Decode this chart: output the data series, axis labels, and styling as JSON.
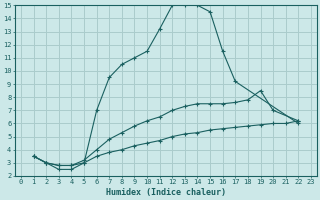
{
  "xlabel": "Humidex (Indice chaleur)",
  "background_color": "#cce8e8",
  "grid_color": "#aacccc",
  "line_color": "#1a6060",
  "xlim": [
    -0.5,
    23.5
  ],
  "ylim": [
    2,
    15
  ],
  "xticks": [
    0,
    1,
    2,
    3,
    4,
    5,
    6,
    7,
    8,
    9,
    10,
    11,
    12,
    13,
    14,
    15,
    16,
    17,
    18,
    19,
    20,
    21,
    22,
    23
  ],
  "yticks": [
    2,
    3,
    4,
    5,
    6,
    7,
    8,
    9,
    10,
    11,
    12,
    13,
    14,
    15
  ],
  "line1_x": [
    1,
    2,
    3,
    4,
    5,
    6,
    7,
    8,
    9,
    10,
    11,
    12,
    13,
    14,
    15,
    16,
    17,
    22
  ],
  "line1_y": [
    3.5,
    3.0,
    2.5,
    2.5,
    3.0,
    7.0,
    9.5,
    10.5,
    11.0,
    11.5,
    13.2,
    15.0,
    15.0,
    15.0,
    14.5,
    11.5,
    9.2,
    6.0
  ],
  "line2_x": [
    1,
    2,
    3,
    4,
    5,
    6,
    7,
    8,
    9,
    10,
    11,
    12,
    13,
    14,
    15,
    16,
    17,
    18,
    19,
    20,
    22
  ],
  "line2_y": [
    3.5,
    3.0,
    2.8,
    2.8,
    3.2,
    4.0,
    4.8,
    5.3,
    5.8,
    6.2,
    6.5,
    7.0,
    7.3,
    7.5,
    7.5,
    7.5,
    7.6,
    7.8,
    8.5,
    7.0,
    6.2
  ],
  "line3_x": [
    1,
    2,
    3,
    4,
    5,
    6,
    7,
    8,
    9,
    10,
    11,
    12,
    13,
    14,
    15,
    16,
    17,
    18,
    19,
    20,
    21,
    22
  ],
  "line3_y": [
    3.5,
    3.0,
    2.8,
    2.8,
    3.0,
    3.5,
    3.8,
    4.0,
    4.3,
    4.5,
    4.7,
    5.0,
    5.2,
    5.3,
    5.5,
    5.6,
    5.7,
    5.8,
    5.9,
    6.0,
    6.0,
    6.2
  ]
}
